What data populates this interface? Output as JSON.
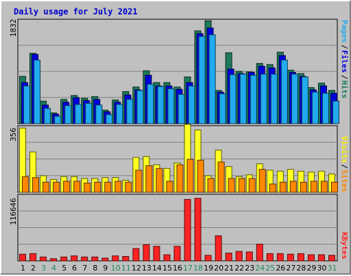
{
  "chart_data": {
    "type": "bar",
    "title": "Daily usage for July 2021",
    "categories": [
      "1",
      "2",
      "3",
      "4",
      "5",
      "6",
      "7",
      "8",
      "9",
      "10",
      "11",
      "12",
      "13",
      "14",
      "15",
      "16",
      "17",
      "18",
      "19",
      "20",
      "21",
      "22",
      "23",
      "24",
      "25",
      "26",
      "27",
      "28",
      "29",
      "30",
      "31"
    ],
    "weekend_days": [
      "3",
      "4",
      "10",
      "11",
      "17",
      "18",
      "24",
      "25",
      "31"
    ],
    "panels": [
      {
        "name": "pages-files-hits",
        "axis_max_label": "1832",
        "ymax": 1832,
        "legend": [
          "Pages",
          "Files",
          "Hits"
        ],
        "series": [
          {
            "name": "Hits",
            "color": "#1e7a5a",
            "values": [
              840,
              1250,
              400,
              190,
              430,
              500,
              450,
              480,
              240,
              420,
              570,
              650,
              940,
              730,
              730,
              650,
              830,
              1650,
              1830,
              590,
              1260,
              930,
              920,
              1070,
              1050,
              1270,
              950,
              890,
              640,
              720,
              590
            ]
          },
          {
            "name": "Files",
            "color": "#0000dd",
            "values": [
              730,
              1230,
              330,
              170,
              380,
              460,
              410,
              430,
              210,
              380,
              510,
              600,
              860,
              670,
              670,
              610,
              730,
              1600,
              1700,
              560,
              970,
              890,
              910,
              1020,
              990,
              1210,
              910,
              840,
              600,
              670,
              540
            ]
          },
          {
            "name": "Pages",
            "color": "#22aaee",
            "values": [
              670,
              1130,
              270,
              130,
              320,
              340,
              360,
              330,
              160,
              340,
              430,
              590,
              700,
              660,
              620,
              520,
              670,
              1550,
              1580,
              530,
              870,
              880,
              860,
              880,
              880,
              1130,
              880,
              830,
              560,
              540,
              400
            ]
          }
        ]
      },
      {
        "name": "visits-sites",
        "axis_max_label": "356",
        "ymax": 356,
        "legend": [
          "Visits",
          "Sites"
        ],
        "series": [
          {
            "name": "Visits",
            "color": "#ffff22",
            "values": [
              350,
              220,
              90,
              70,
              85,
              85,
              75,
              75,
              80,
              80,
              65,
              190,
              195,
              150,
              130,
              160,
              370,
              340,
              90,
              230,
              140,
              85,
              95,
              155,
              120,
              115,
              125,
              115,
              110,
              115,
              100
            ]
          },
          {
            "name": "Sites",
            "color": "#ff8800",
            "values": [
              85,
              80,
              55,
              55,
              60,
              60,
              50,
              55,
              55,
              60,
              55,
              120,
              145,
              130,
              60,
              150,
              180,
              175,
              75,
              165,
              75,
              75,
              75,
              125,
              45,
              55,
              60,
              55,
              60,
              60,
              55
            ]
          }
        ]
      },
      {
        "name": "kbytes",
        "axis_max_label": "116646",
        "ymax": 116646,
        "legend": [
          "KBytes"
        ],
        "series": [
          {
            "name": "KBytes",
            "color": "#ff2222",
            "values": [
              12000,
              13000,
              7000,
              4000,
              7000,
              9000,
              7000,
              7000,
              5000,
              9000,
              8000,
              22000,
              29000,
              26000,
              11000,
              26000,
              110000,
              112000,
              10000,
              45000,
              14000,
              17000,
              16000,
              30000,
              13000,
              13000,
              12000,
              13000,
              11000,
              11000,
              10000
            ]
          }
        ]
      }
    ]
  }
}
